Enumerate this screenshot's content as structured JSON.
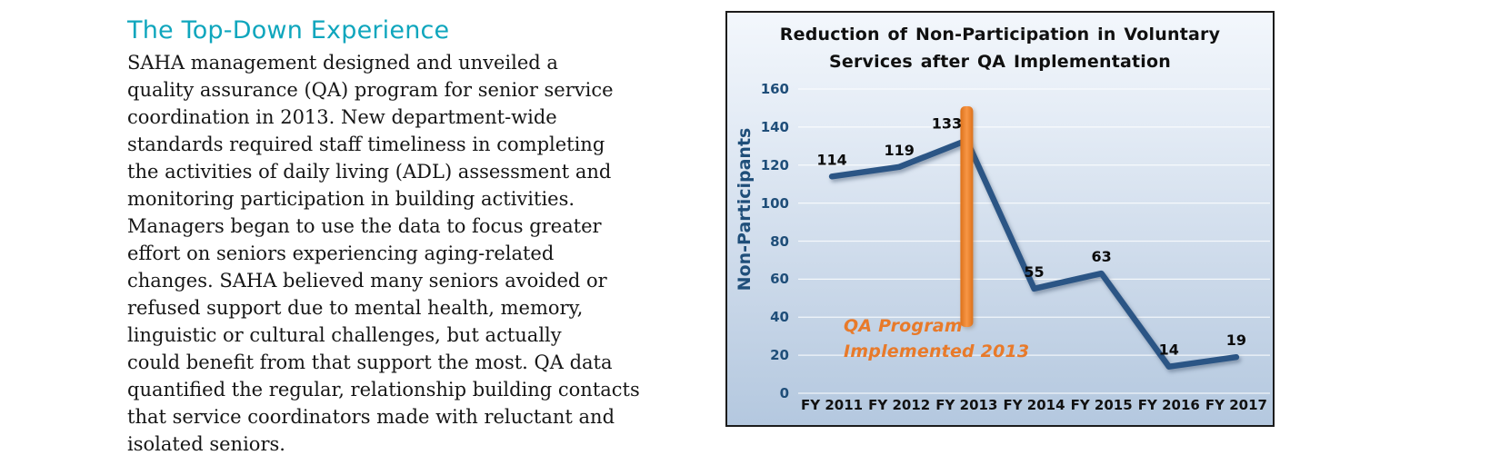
{
  "article": {
    "heading": "The Top-Down Experience",
    "body": "SAHA management designed and unveiled a\nquality assurance (QA) program for senior service\ncoordination in 2013. New department-wide\nstandards required staff timeliness in completing\nthe activities of daily living (ADL) assessment and\nmonitoring participation in building activities.\nManagers began to use the data to focus greater\neffort on seniors experiencing aging-related\nchanges. SAHA believed many seniors avoided or\nrefused support due to mental health, memory,\nlinguistic or cultural challenges, but actually\ncould benefit from that support the most. QA data\nquantified the regular, relationship building contacts\nthat service coordinators made with reluctant and\nisolated seniors."
  },
  "chart": {
    "title_display": "Reduction of Non-Participation in Voluntary\nServices after QA Implementation",
    "annotation_display": "QA Program\nImplemented 2013",
    "colors": {
      "heading_accent": "#0FA6BD",
      "line": "#2B5585",
      "bar": "#ED7D31",
      "axis_text": "#1F4E79",
      "annotation_text": "#E87A2A"
    }
  },
  "chart_data": {
    "type": "line",
    "title": "Reduction of Non-Participation in Voluntary Services after QA Implementation",
    "categories": [
      "FY 2011",
      "FY 2012",
      "FY 2013",
      "FY 2014",
      "FY 2015",
      "FY 2016",
      "FY 2017"
    ],
    "values": [
      114,
      119,
      133,
      55,
      63,
      14,
      19
    ],
    "xlabel": "",
    "ylabel": "Non-Participants",
    "ylim": [
      0,
      160
    ],
    "ytick_step": 20,
    "grid": true,
    "legend": false,
    "line_color": "#2B5585",
    "annotation": {
      "text": "QA Program Implemented 2013",
      "marker": "vertical-bar",
      "at_category": "FY 2013",
      "color": "#ED7D31"
    }
  }
}
